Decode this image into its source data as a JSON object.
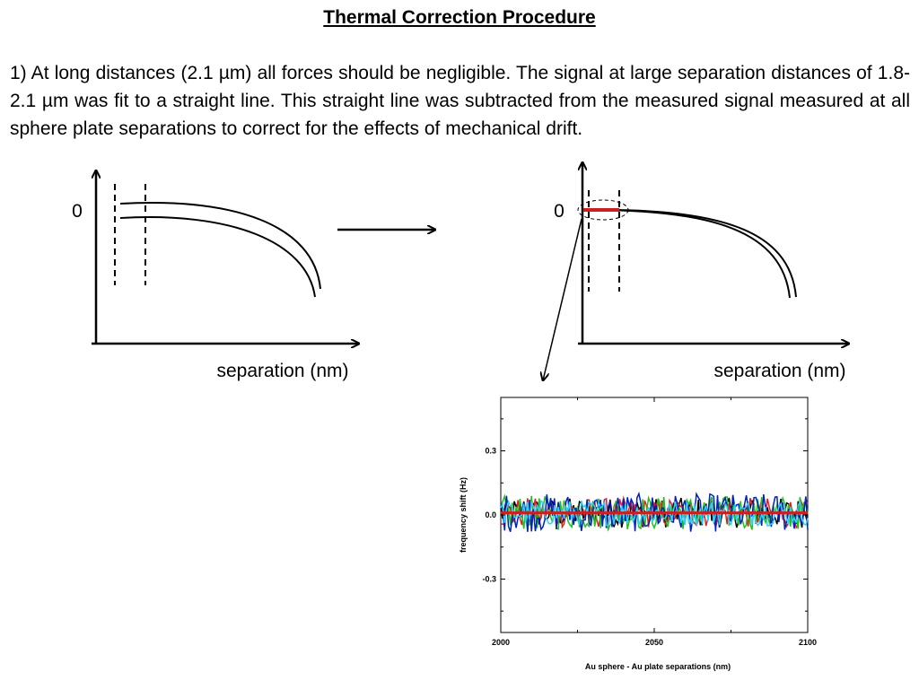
{
  "title": "Thermal Correction Procedure",
  "paragraph": "1) At long distances (2.1 µm) all forces should be negligible. The signal at large separation distances of 1.8-2.1 µm was fit to a straight line. This straight line was subtracted from the measured signal measured at all sphere plate separations to correct for the effects of mechanical drift.",
  "left_diagram": {
    "zero_label": "0",
    "x_axis_label": "separation (nm)"
  },
  "right_diagram": {
    "zero_label": "0",
    "x_axis_label": "separation (nm)"
  },
  "colors": {
    "fit_line": "#cc1f1f",
    "series": [
      "#000000",
      "#e02020",
      "#20c020",
      "#0020c0",
      "#30d0f0"
    ]
  },
  "chart_data": {
    "type": "line",
    "title": "",
    "xlabel": "Au sphere - Au plate separations (nm)",
    "ylabel": "frequency shift (Hz)",
    "xlim": [
      2000,
      2100
    ],
    "ylim": [
      -0.55,
      0.55
    ],
    "x_ticks": [
      "2000",
      "2050",
      "2100"
    ],
    "y_ticks": [
      "0.3",
      "0.0",
      "-0.3"
    ],
    "series": [
      {
        "color": "#000000",
        "noise_amplitude": 0.07
      },
      {
        "color": "#e02020",
        "noise_amplitude": 0.07
      },
      {
        "color": "#20c020",
        "noise_amplitude": 0.08
      },
      {
        "color": "#0020c0",
        "noise_amplitude": 0.09
      },
      {
        "color": "#30d0f0",
        "noise_amplitude": 0.06
      }
    ],
    "fit_line": {
      "color": "#cc1f1f",
      "x": [
        2000,
        2100
      ],
      "y": [
        0.01,
        0.01
      ]
    }
  }
}
